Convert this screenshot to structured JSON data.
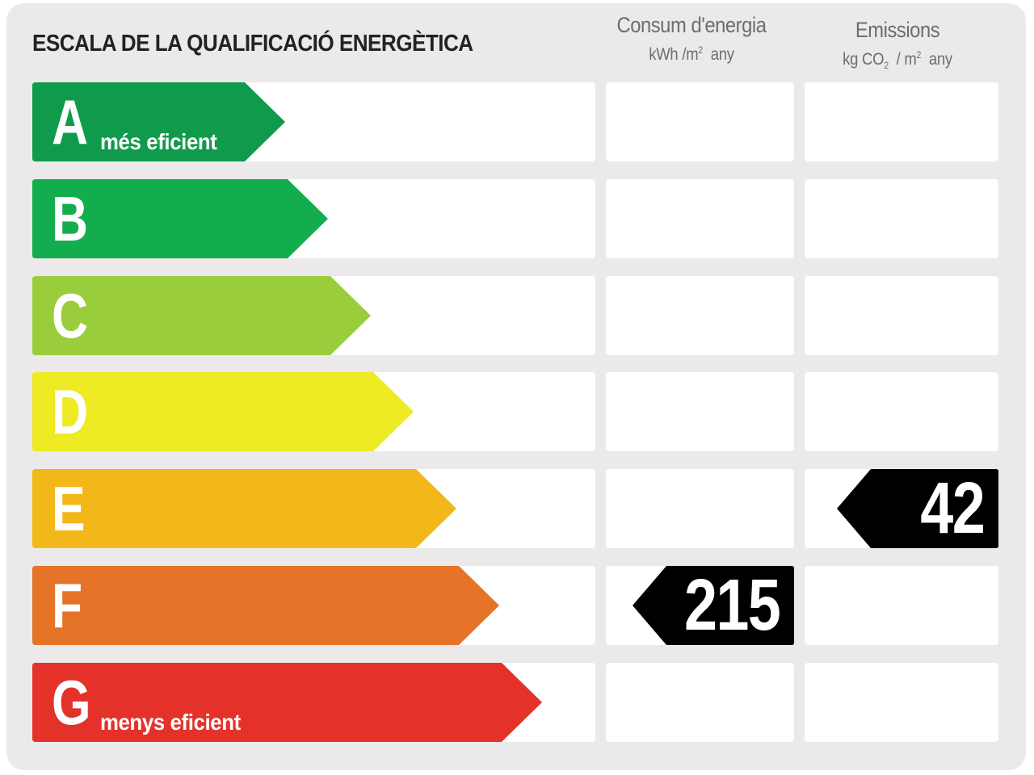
{
  "title": "ESCALA DE LA QUALIFICACIÓ ENERGÈTICA",
  "columns": {
    "energy": {
      "title": "Consum d'energia",
      "unit_prefix": "kWh /m",
      "unit_sup": "2",
      "unit_suffix": "any"
    },
    "emissions": {
      "title": "Emissions",
      "unit_prefix": "kg CO",
      "unit_sub": "2",
      "unit_mid": "/ m",
      "unit_sup": "2",
      "unit_suffix": "any"
    }
  },
  "ratings": [
    {
      "letter": "A",
      "label": "més eficient",
      "color": "#0f9b4b"
    },
    {
      "letter": "B",
      "label": "",
      "color": "#13ad4e"
    },
    {
      "letter": "C",
      "label": "",
      "color": "#9acd3c"
    },
    {
      "letter": "D",
      "label": "",
      "color": "#eeea24"
    },
    {
      "letter": "E",
      "label": "",
      "color": "#f2b81a"
    },
    {
      "letter": "F",
      "label": "",
      "color": "#e57328"
    },
    {
      "letter": "G",
      "label": "menys eficient",
      "color": "#e4322b"
    }
  ],
  "result": {
    "energy": {
      "value": "215",
      "rating": "F"
    },
    "emissions": {
      "value": "42",
      "rating": "E"
    }
  },
  "marker_color": "#000000",
  "cell_color": "#ffffff",
  "background_color": "#ebe9ea"
}
